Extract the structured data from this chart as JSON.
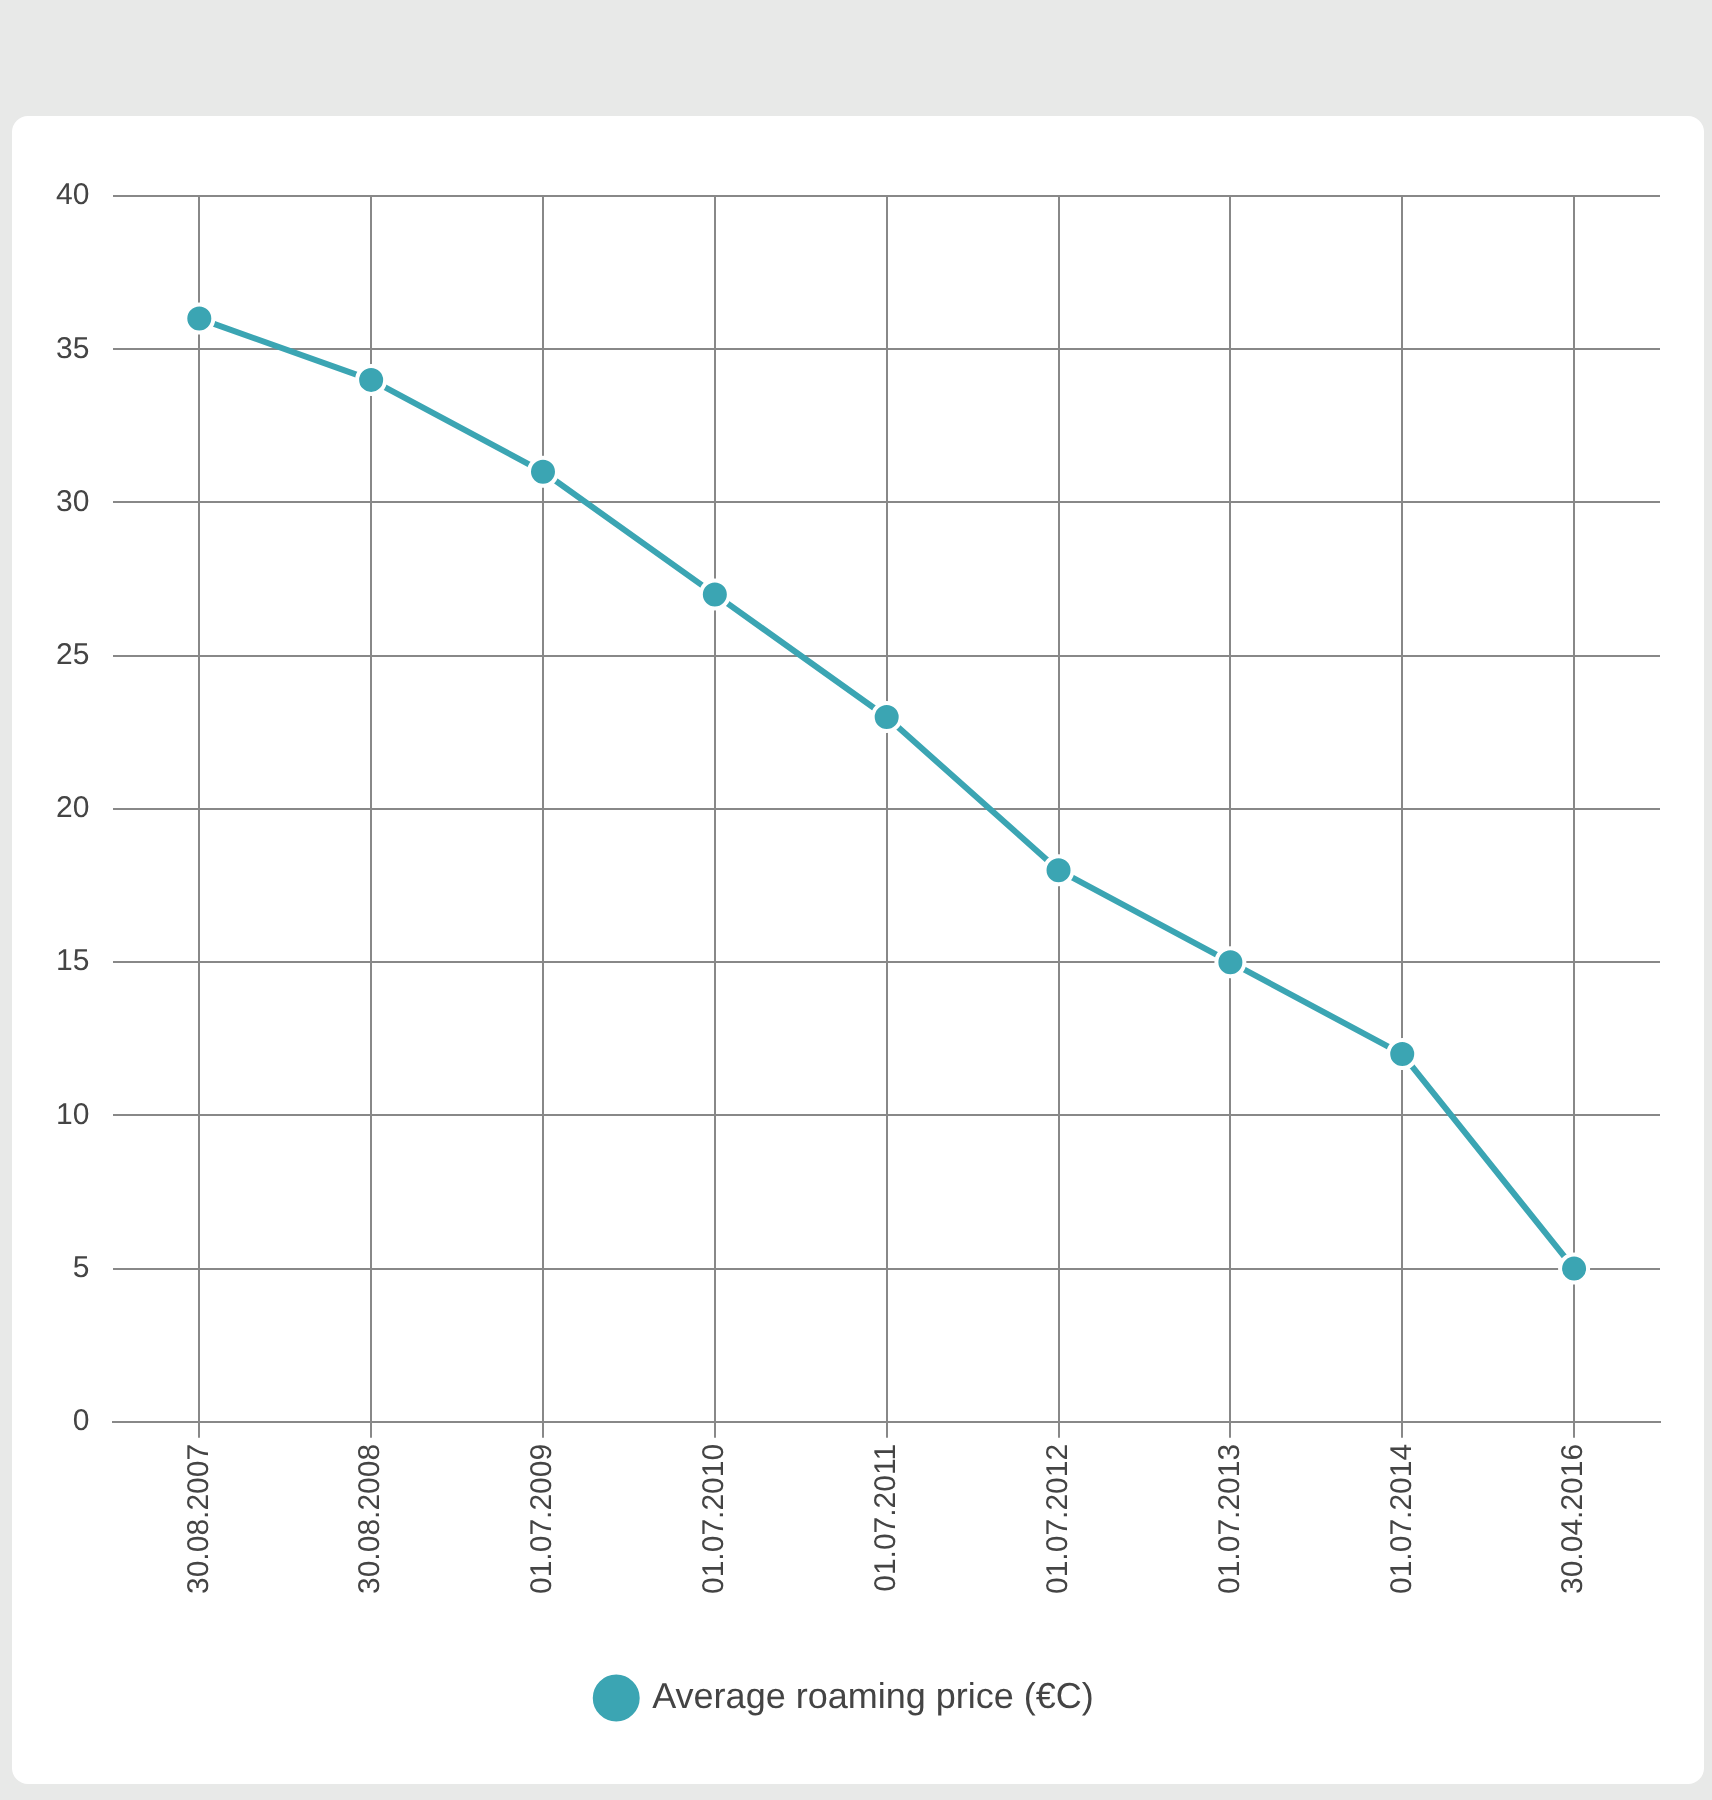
{
  "chart_data": {
    "type": "line",
    "categories": [
      "30.08.2007",
      "30.08.2008",
      "01.07.2009",
      "01.07.2010",
      "01.07.2011",
      "01.07.2012",
      "01.07.2013",
      "01.07.2014",
      "30.04.2016"
    ],
    "series": [
      {
        "name": "Average roaming price (€C)",
        "color": "#3ba5b3",
        "values": [
          36,
          34,
          31,
          27,
          23,
          18,
          15,
          12,
          5
        ]
      }
    ],
    "ylim": [
      0,
      40
    ],
    "yticks": [
      0,
      5,
      10,
      15,
      20,
      25,
      30,
      35,
      40
    ],
    "grid": true,
    "legend": "bottom",
    "marker": "circle",
    "line_style": "solid"
  }
}
